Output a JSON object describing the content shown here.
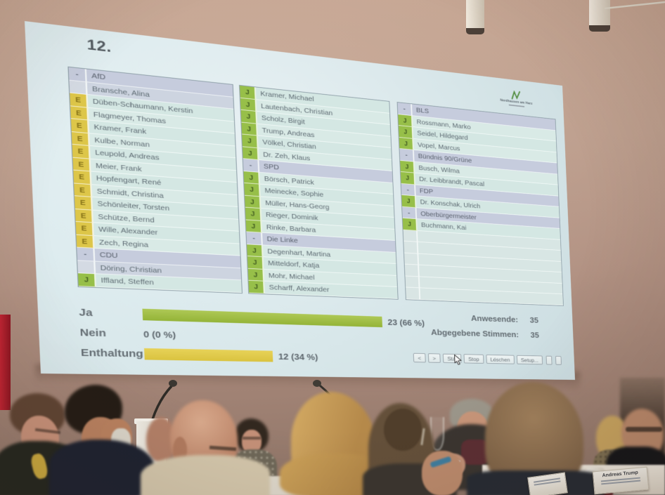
{
  "screen": {
    "agenda_number": "12.",
    "logo": {
      "icon": "city-emblem",
      "line1": "Nordhausen am Harz"
    },
    "columns": [
      {
        "rows": [
          {
            "type": "header",
            "mark": "-",
            "name": "AfD"
          },
          {
            "type": "novote",
            "mark": "",
            "name": "Bransche, Alina"
          },
          {
            "type": "member",
            "mark": "E",
            "name": "Düben-Schaumann, Kerstin"
          },
          {
            "type": "member",
            "mark": "E",
            "name": "Flagmeyer, Thomas"
          },
          {
            "type": "member",
            "mark": "E",
            "name": "Kramer, Frank"
          },
          {
            "type": "member",
            "mark": "E",
            "name": "Kulbe, Norman"
          },
          {
            "type": "member",
            "mark": "E",
            "name": "Leupold, Andreas"
          },
          {
            "type": "member",
            "mark": "E",
            "name": "Meier, Frank"
          },
          {
            "type": "member",
            "mark": "E",
            "name": "Hopfengart, René"
          },
          {
            "type": "member",
            "mark": "E",
            "name": "Schmidt, Christina"
          },
          {
            "type": "member",
            "mark": "E",
            "name": "Schönleiter, Torsten"
          },
          {
            "type": "member",
            "mark": "E",
            "name": "Schütze, Bernd"
          },
          {
            "type": "member",
            "mark": "E",
            "name": "Wille, Alexander"
          },
          {
            "type": "member",
            "mark": "E",
            "name": "Zech, Regina"
          },
          {
            "type": "header",
            "mark": "-",
            "name": "CDU"
          },
          {
            "type": "novote",
            "mark": "",
            "name": "Döring, Christian"
          },
          {
            "type": "member",
            "mark": "J",
            "name": "Iffland, Steffen"
          }
        ]
      },
      {
        "rows": [
          {
            "type": "member",
            "mark": "J",
            "name": "Kramer, Michael"
          },
          {
            "type": "member",
            "mark": "J",
            "name": "Lautenbach, Christian"
          },
          {
            "type": "member",
            "mark": "J",
            "name": "Scholz, Birgit"
          },
          {
            "type": "member",
            "mark": "J",
            "name": "Trump, Andreas"
          },
          {
            "type": "member",
            "mark": "J",
            "name": "Völkel, Christian"
          },
          {
            "type": "member",
            "mark": "J",
            "name": "Dr. Zeh, Klaus"
          },
          {
            "type": "header",
            "mark": "-",
            "name": "SPD"
          },
          {
            "type": "member",
            "mark": "J",
            "name": "Börsch, Patrick"
          },
          {
            "type": "member",
            "mark": "J",
            "name": "Meinecke, Sophie"
          },
          {
            "type": "member",
            "mark": "J",
            "name": "Müller, Hans-Georg"
          },
          {
            "type": "member",
            "mark": "J",
            "name": "Rieger, Dominik"
          },
          {
            "type": "member",
            "mark": "J",
            "name": "Rinke, Barbara"
          },
          {
            "type": "header",
            "mark": "-",
            "name": "Die Linke"
          },
          {
            "type": "member",
            "mark": "J",
            "name": "Degenhart, Martina"
          },
          {
            "type": "member",
            "mark": "J",
            "name": "Mitteldorf, Katja"
          },
          {
            "type": "member",
            "mark": "J",
            "name": "Mohr, Michael"
          },
          {
            "type": "member",
            "mark": "J",
            "name": "Scharff, Alexander"
          }
        ]
      },
      {
        "rows": [
          {
            "type": "header",
            "mark": "-",
            "name": "BLS"
          },
          {
            "type": "member",
            "mark": "J",
            "name": "Rossmann, Marko"
          },
          {
            "type": "member",
            "mark": "J",
            "name": "Seidel, Hildegard"
          },
          {
            "type": "member",
            "mark": "J",
            "name": "Vopel, Marcus"
          },
          {
            "type": "header",
            "mark": "-",
            "name": "Bündnis 90/Grüne"
          },
          {
            "type": "member",
            "mark": "J",
            "name": "Busch, Wilma"
          },
          {
            "type": "member",
            "mark": "J",
            "name": "Dr. Leibbrandt, Pascal"
          },
          {
            "type": "header",
            "mark": "-",
            "name": "FDP"
          },
          {
            "type": "member",
            "mark": "J",
            "name": "Dr. Konschak, Ulrich"
          },
          {
            "type": "header",
            "mark": "-",
            "name": "Oberbürgermeister"
          },
          {
            "type": "member",
            "mark": "J",
            "name": "Buchmann, Kai"
          },
          {
            "type": "empty",
            "mark": "",
            "name": ""
          },
          {
            "type": "empty",
            "mark": "",
            "name": ""
          },
          {
            "type": "empty",
            "mark": "",
            "name": ""
          },
          {
            "type": "empty",
            "mark": "",
            "name": ""
          },
          {
            "type": "empty",
            "mark": "",
            "name": ""
          },
          {
            "type": "empty",
            "mark": "",
            "name": ""
          }
        ]
      }
    ],
    "results": {
      "rows": [
        {
          "label": "Ja",
          "value": "23 (66 %)",
          "pct": 66,
          "bar": "green"
        },
        {
          "label": "Nein",
          "value": "0 (0 %)",
          "pct": 0,
          "bar": "none"
        },
        {
          "label": "Enthaltung",
          "value": "12 (34 %)",
          "pct": 34,
          "bar": "yellow"
        }
      ],
      "stats": [
        {
          "label": "Anwesende:",
          "value": "35"
        },
        {
          "label": "Abgegebene Stimmen:",
          "value": "35"
        }
      ]
    },
    "toolbar": {
      "buttons": [
        {
          "label": "<",
          "name": "prev-button"
        },
        {
          "label": ">",
          "name": "next-button"
        },
        {
          "label": "Stat",
          "name": "stat-button"
        },
        {
          "label": "Stop",
          "name": "stop-button"
        },
        {
          "label": "Löschen",
          "name": "loeschen-button"
        },
        {
          "label": "Setup...",
          "name": "setup-button"
        },
        {
          "label": "",
          "name": "small-button-1"
        },
        {
          "label": "",
          "name": "small-button-2"
        }
      ]
    },
    "colors": {
      "ja_green": "#9ec23e",
      "enthaltung_yellow": "#e2ca41",
      "party_header_row": "#c6ccdf",
      "member_row": "#d3e7e3",
      "screen_background": "#dcecef"
    }
  },
  "photo": {
    "name_plates": [
      {
        "text": ""
      },
      {
        "text": "Andreas Trump"
      }
    ]
  }
}
